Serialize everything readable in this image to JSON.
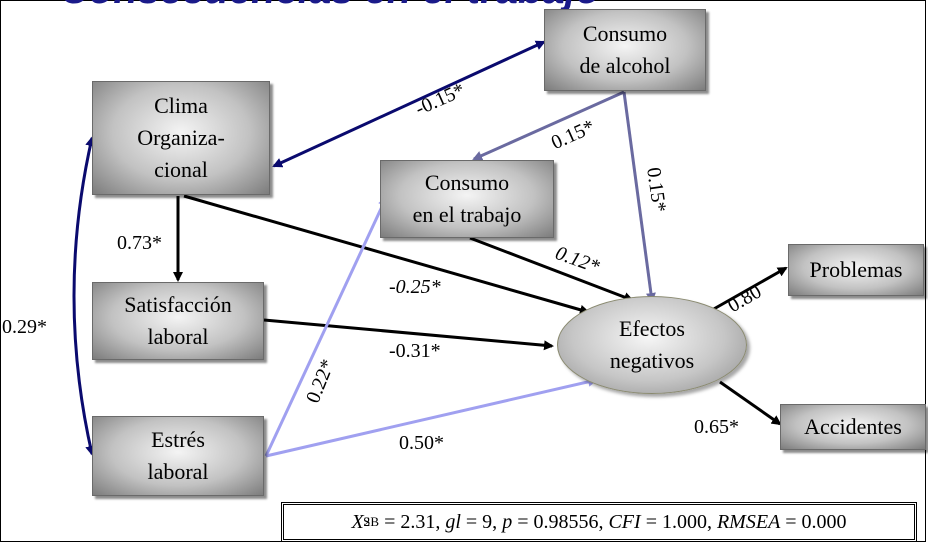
{
  "banner_text": "Consecuencias en el trabajo",
  "nodes": {
    "clima": "Clima\nOrganiza-\ncional",
    "satisfaccion": "Satisfacción\nlaboral",
    "estres": "Estrés\nlaboral",
    "alcohol": "Consumo\nde alcohol",
    "trabajo": "Consumo\nen el trabajo",
    "efectos": "Efectos\nnegativos",
    "problemas": "Problemas",
    "accidentes": "Accidentes"
  },
  "paths": {
    "clima_alcohol": "-0.15*",
    "alcohol_trabajo": "0.15*",
    "alcohol_efectos": "0.15*",
    "clima_satisfaccion": "0.73*",
    "trabajo_efectos": "0.12*",
    "clima_efectos": "-0.25*",
    "clima_estres": "0.29*",
    "satisfaccion_efectos": "-0.31*",
    "estres_trabajo": "0.22*",
    "estres_efectos": "0.50*",
    "efectos_problemas": "0.80",
    "efectos_accidentes": "0.65*"
  },
  "fit": {
    "chi_symbol": "X",
    "chi_sup": "2",
    "chi_sub": "SB",
    "chi_value": " = 2.31, ",
    "gl_label": "gl",
    "gl_value": " = 9, ",
    "p_label": "p",
    "p_value": " = 0.98556, ",
    "cfi_label": "CFI",
    "cfi_value": " = 1.000, ",
    "rmsea_label": "RMSEA",
    "rmsea_value": " = 0.000"
  },
  "colors": {
    "dark_navy": "#0a0a6e",
    "slate_blue": "#6a6aa0",
    "light_blue": "#a0a0f0",
    "black": "#000000"
  }
}
